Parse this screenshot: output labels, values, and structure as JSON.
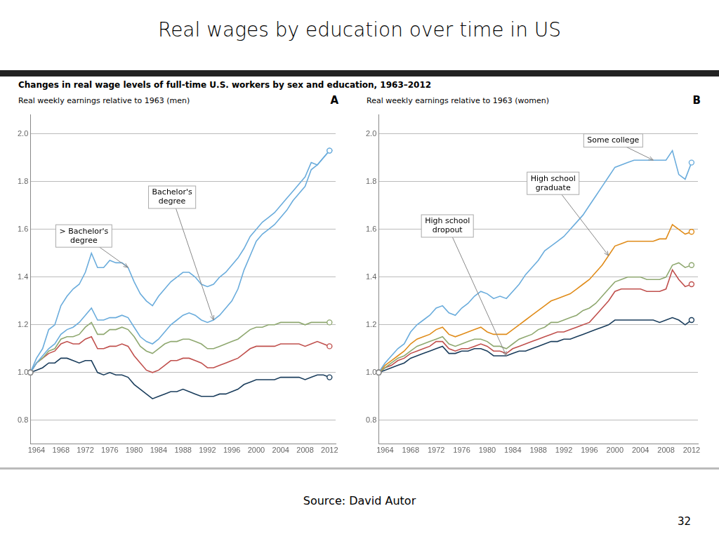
{
  "title": "Real wages by education over time in US",
  "subtitle": "Changes in real wage levels of full-time U.S. workers by sex and education, 1963–2012",
  "source": "Source: David Autor",
  "page": "32",
  "chart_data": [
    {
      "type": "line",
      "title": "Real weekly earnings relative to 1963 (men)",
      "label": "A",
      "x": [
        1963,
        1964,
        1965,
        1966,
        1967,
        1968,
        1969,
        1970,
        1971,
        1972,
        1973,
        1974,
        1975,
        1976,
        1977,
        1978,
        1979,
        1980,
        1981,
        1982,
        1983,
        1984,
        1985,
        1986,
        1987,
        1988,
        1989,
        1990,
        1991,
        1992,
        1993,
        1994,
        1995,
        1996,
        1997,
        1998,
        1999,
        2000,
        2001,
        2002,
        2003,
        2004,
        2005,
        2006,
        2007,
        2008,
        2009,
        2010,
        2011,
        2012
      ],
      "series": [
        {
          "color": "#6aacdc",
          "values": [
            1.0,
            1.06,
            1.1,
            1.18,
            1.2,
            1.28,
            1.32,
            1.35,
            1.37,
            1.42,
            1.5,
            1.44,
            1.44,
            1.47,
            1.46,
            1.46,
            1.44,
            1.38,
            1.33,
            1.3,
            1.28,
            1.32,
            1.35,
            1.38,
            1.4,
            1.42,
            1.42,
            1.4,
            1.37,
            1.36,
            1.37,
            1.4,
            1.42,
            1.45,
            1.48,
            1.52,
            1.57,
            1.6,
            1.63,
            1.65,
            1.67,
            1.7,
            1.73,
            1.76,
            1.79,
            1.82,
            1.88,
            1.87,
            1.9,
            1.93
          ]
        },
        {
          "color": "#6aacdc",
          "values": [
            1.0,
            1.04,
            1.07,
            1.1,
            1.12,
            1.16,
            1.18,
            1.19,
            1.21,
            1.24,
            1.27,
            1.22,
            1.22,
            1.23,
            1.23,
            1.24,
            1.23,
            1.19,
            1.15,
            1.13,
            1.12,
            1.14,
            1.17,
            1.2,
            1.22,
            1.24,
            1.25,
            1.24,
            1.22,
            1.21,
            1.22,
            1.24,
            1.27,
            1.3,
            1.35,
            1.43,
            1.49,
            1.55,
            1.58,
            1.6,
            1.62,
            1.65,
            1.68,
            1.72,
            1.75,
            1.78,
            1.85,
            1.87,
            1.9,
            1.93
          ]
        },
        {
          "color": "#8fa870",
          "values": [
            1.0,
            1.04,
            1.06,
            1.09,
            1.1,
            1.14,
            1.15,
            1.15,
            1.16,
            1.19,
            1.21,
            1.16,
            1.16,
            1.18,
            1.18,
            1.19,
            1.18,
            1.15,
            1.11,
            1.09,
            1.08,
            1.1,
            1.12,
            1.13,
            1.13,
            1.14,
            1.14,
            1.13,
            1.12,
            1.1,
            1.1,
            1.11,
            1.12,
            1.13,
            1.14,
            1.16,
            1.18,
            1.19,
            1.19,
            1.2,
            1.2,
            1.21,
            1.21,
            1.21,
            1.21,
            1.2,
            1.21,
            1.21,
            1.21,
            1.21
          ]
        },
        {
          "color": "#c0504d",
          "values": [
            1.0,
            1.04,
            1.06,
            1.08,
            1.09,
            1.12,
            1.13,
            1.12,
            1.12,
            1.14,
            1.15,
            1.1,
            1.1,
            1.11,
            1.11,
            1.12,
            1.11,
            1.07,
            1.04,
            1.01,
            1.0,
            1.01,
            1.03,
            1.05,
            1.05,
            1.06,
            1.06,
            1.05,
            1.04,
            1.02,
            1.02,
            1.03,
            1.04,
            1.05,
            1.06,
            1.08,
            1.1,
            1.11,
            1.11,
            1.11,
            1.11,
            1.12,
            1.12,
            1.12,
            1.12,
            1.11,
            1.12,
            1.13,
            1.12,
            1.11
          ]
        },
        {
          "color": "#1a3d5c",
          "values": [
            1.0,
            1.01,
            1.02,
            1.04,
            1.04,
            1.06,
            1.06,
            1.05,
            1.04,
            1.05,
            1.05,
            1.0,
            0.99,
            1.0,
            0.99,
            0.99,
            0.98,
            0.95,
            0.93,
            0.91,
            0.89,
            0.9,
            0.91,
            0.92,
            0.92,
            0.93,
            0.92,
            0.91,
            0.9,
            0.9,
            0.9,
            0.91,
            0.91,
            0.92,
            0.93,
            0.95,
            0.96,
            0.97,
            0.97,
            0.97,
            0.97,
            0.98,
            0.98,
            0.98,
            0.98,
            0.97,
            0.98,
            0.99,
            0.99,
            0.98
          ]
        }
      ],
      "marker": "circle",
      "xlim": [
        1963,
        2013
      ],
      "xticks": [
        1964,
        1968,
        1972,
        1976,
        1980,
        1984,
        1988,
        1992,
        1996,
        2000,
        2004,
        2008,
        2012
      ],
      "ylim": [
        0.7,
        2.08
      ],
      "yticks": [
        0.8,
        {
          "value": 1.0,
          "label": "1.0"
        },
        1.2,
        1.4,
        1.6,
        1.8,
        {
          "value": 2.0,
          "label": "2.0"
        }
      ],
      "grid": "y",
      "annotations": [
        {
          "text": "> Bachelor's\ndegree",
          "x": 1979,
          "y": 1.44
        },
        {
          "text": "Bachelor's\ndegree",
          "x": 1993,
          "y": 1.22
        }
      ]
    },
    {
      "type": "line",
      "title": "Real weekly earnings relative to 1963 (women)",
      "label": "B",
      "x": [
        1963,
        1964,
        1965,
        1966,
        1967,
        1968,
        1969,
        1970,
        1971,
        1972,
        1973,
        1974,
        1975,
        1976,
        1977,
        1978,
        1979,
        1980,
        1981,
        1982,
        1983,
        1984,
        1985,
        1986,
        1987,
        1988,
        1989,
        1990,
        1991,
        1992,
        1993,
        1994,
        1995,
        1996,
        1997,
        1998,
        1999,
        2000,
        2001,
        2002,
        2003,
        2004,
        2005,
        2006,
        2007,
        2008,
        2009,
        2010,
        2011,
        2012
      ],
      "series": [
        {
          "color": "#6aacdc",
          "values": [
            1.0,
            1.04,
            1.07,
            1.1,
            1.12,
            1.17,
            1.2,
            1.22,
            1.24,
            1.27,
            1.28,
            1.25,
            1.24,
            1.27,
            1.29,
            1.32,
            1.34,
            1.33,
            1.31,
            1.32,
            1.31,
            1.34,
            1.37,
            1.41,
            1.44,
            1.47,
            1.51,
            1.53,
            1.55,
            1.57,
            1.6,
            1.63,
            1.66,
            1.7,
            1.74,
            1.78,
            1.82,
            1.86,
            1.87,
            1.88,
            1.89,
            1.89,
            1.89,
            1.89,
            1.89,
            1.89,
            1.93,
            1.83,
            1.81,
            1.88
          ]
        },
        {
          "color": "#e08c1a",
          "values": [
            1.0,
            1.03,
            1.05,
            1.07,
            1.09,
            1.12,
            1.14,
            1.15,
            1.16,
            1.18,
            1.19,
            1.16,
            1.15,
            1.16,
            1.17,
            1.18,
            1.19,
            1.17,
            1.16,
            1.16,
            1.16,
            1.18,
            1.2,
            1.22,
            1.24,
            1.26,
            1.28,
            1.3,
            1.31,
            1.32,
            1.33,
            1.35,
            1.37,
            1.39,
            1.42,
            1.45,
            1.49,
            1.53,
            1.54,
            1.55,
            1.55,
            1.55,
            1.55,
            1.55,
            1.56,
            1.56,
            1.62,
            1.6,
            1.58,
            1.59
          ]
        },
        {
          "color": "#8fa870",
          "values": [
            1.0,
            1.02,
            1.04,
            1.06,
            1.07,
            1.09,
            1.11,
            1.12,
            1.13,
            1.14,
            1.15,
            1.12,
            1.11,
            1.12,
            1.13,
            1.14,
            1.14,
            1.13,
            1.11,
            1.11,
            1.1,
            1.12,
            1.14,
            1.15,
            1.16,
            1.18,
            1.19,
            1.21,
            1.21,
            1.22,
            1.23,
            1.24,
            1.26,
            1.27,
            1.29,
            1.32,
            1.35,
            1.38,
            1.39,
            1.4,
            1.4,
            1.4,
            1.39,
            1.39,
            1.39,
            1.4,
            1.45,
            1.46,
            1.44,
            1.45
          ]
        },
        {
          "color": "#c0504d",
          "values": [
            1.0,
            1.02,
            1.03,
            1.05,
            1.06,
            1.08,
            1.09,
            1.1,
            1.11,
            1.13,
            1.13,
            1.1,
            1.09,
            1.1,
            1.1,
            1.11,
            1.12,
            1.11,
            1.09,
            1.09,
            1.08,
            1.1,
            1.11,
            1.12,
            1.13,
            1.14,
            1.15,
            1.16,
            1.17,
            1.17,
            1.18,
            1.19,
            1.2,
            1.21,
            1.24,
            1.27,
            1.3,
            1.34,
            1.35,
            1.35,
            1.35,
            1.35,
            1.34,
            1.34,
            1.34,
            1.35,
            1.43,
            1.39,
            1.36,
            1.37
          ]
        },
        {
          "color": "#1a3d5c",
          "values": [
            1.0,
            1.01,
            1.02,
            1.03,
            1.04,
            1.06,
            1.07,
            1.08,
            1.09,
            1.1,
            1.11,
            1.08,
            1.08,
            1.09,
            1.09,
            1.1,
            1.1,
            1.09,
            1.07,
            1.07,
            1.07,
            1.08,
            1.09,
            1.09,
            1.1,
            1.11,
            1.12,
            1.13,
            1.13,
            1.14,
            1.14,
            1.15,
            1.16,
            1.17,
            1.18,
            1.19,
            1.2,
            1.22,
            1.22,
            1.22,
            1.22,
            1.22,
            1.22,
            1.22,
            1.21,
            1.22,
            1.23,
            1.22,
            1.2,
            1.22
          ]
        }
      ],
      "marker": "circle",
      "xlim": [
        1963,
        2013
      ],
      "xticks": [
        1964,
        1968,
        1972,
        1976,
        1980,
        1984,
        1988,
        1992,
        1996,
        2000,
        2004,
        2008,
        2012
      ],
      "ylim": [
        0.7,
        2.08
      ],
      "yticks": [
        0.8,
        {
          "value": 1.0,
          "label": "1.0"
        },
        1.2,
        1.4,
        1.6,
        1.8,
        {
          "value": 2.0,
          "label": "2.0"
        }
      ],
      "grid": "y",
      "annotations": [
        {
          "text": "High school\ndropout",
          "x": 1983,
          "y": 1.07
        },
        {
          "text": "High school\ngraduate",
          "x": 1999,
          "y": 1.49
        },
        {
          "text": "Some college",
          "x": 2006,
          "y": 1.89
        }
      ]
    }
  ]
}
